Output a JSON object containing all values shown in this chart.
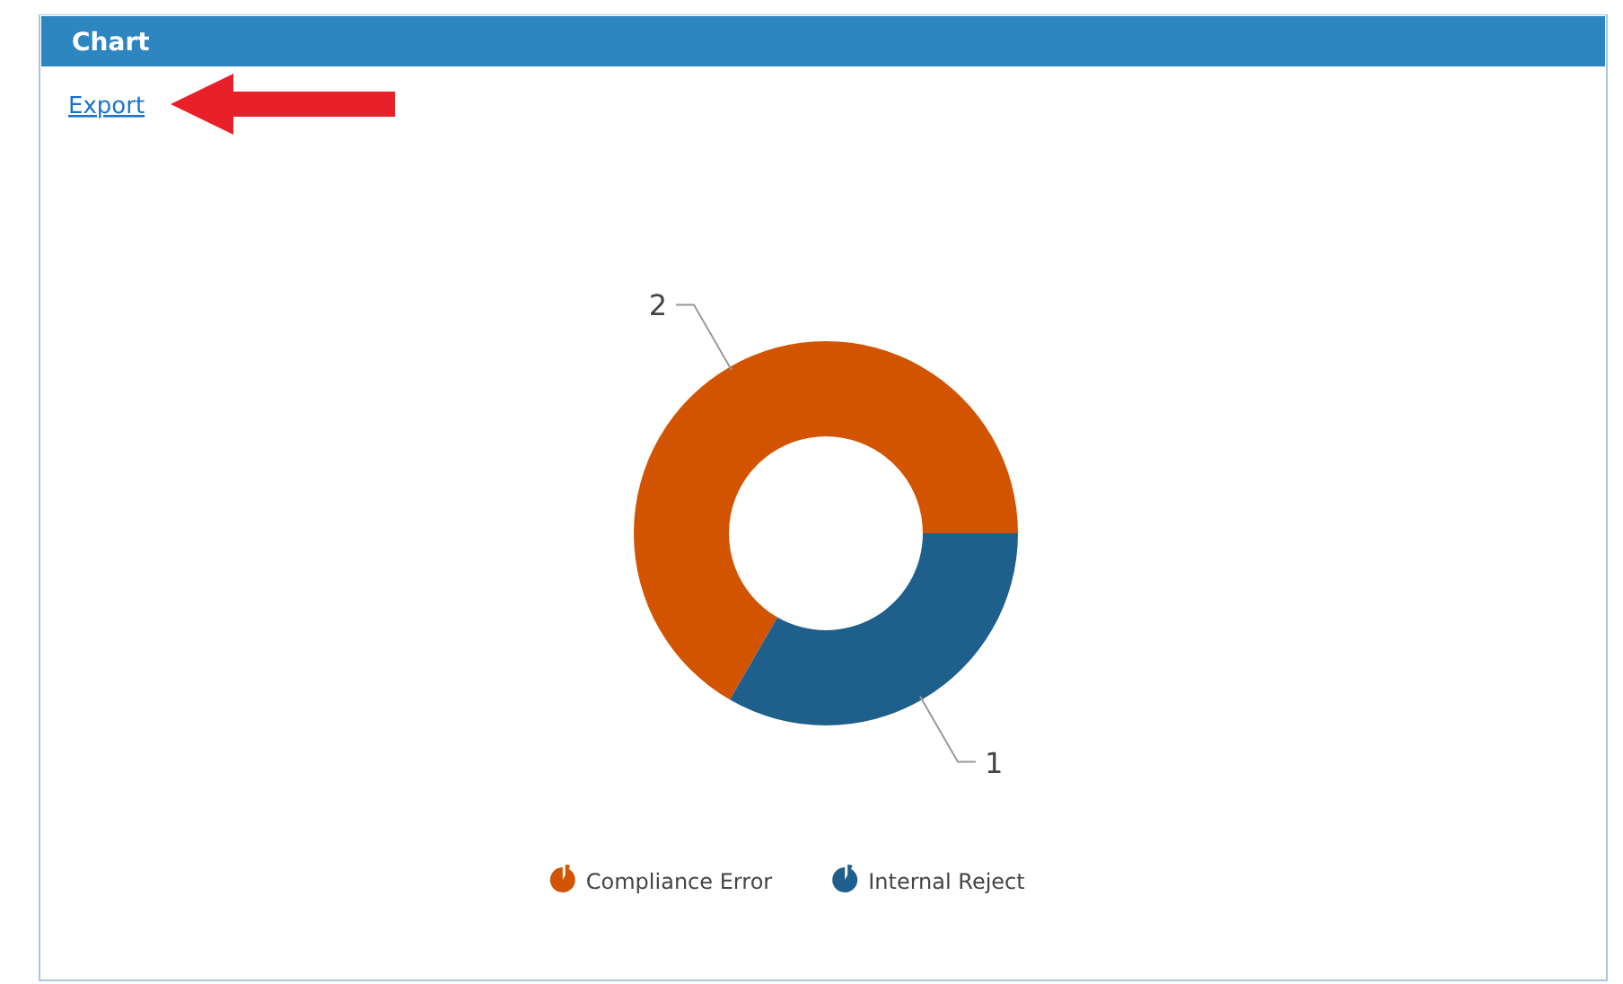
{
  "chart_data": {
    "type": "donut",
    "title": "Chart",
    "annotations": [
      "Export"
    ],
    "categories": [
      "Compliance Error",
      "Internal Reject"
    ],
    "values": [
      2,
      1
    ],
    "colors": [
      "#d35400",
      "#1f5f8b"
    ],
    "data_labels": true,
    "legend": "bottom"
  }
}
